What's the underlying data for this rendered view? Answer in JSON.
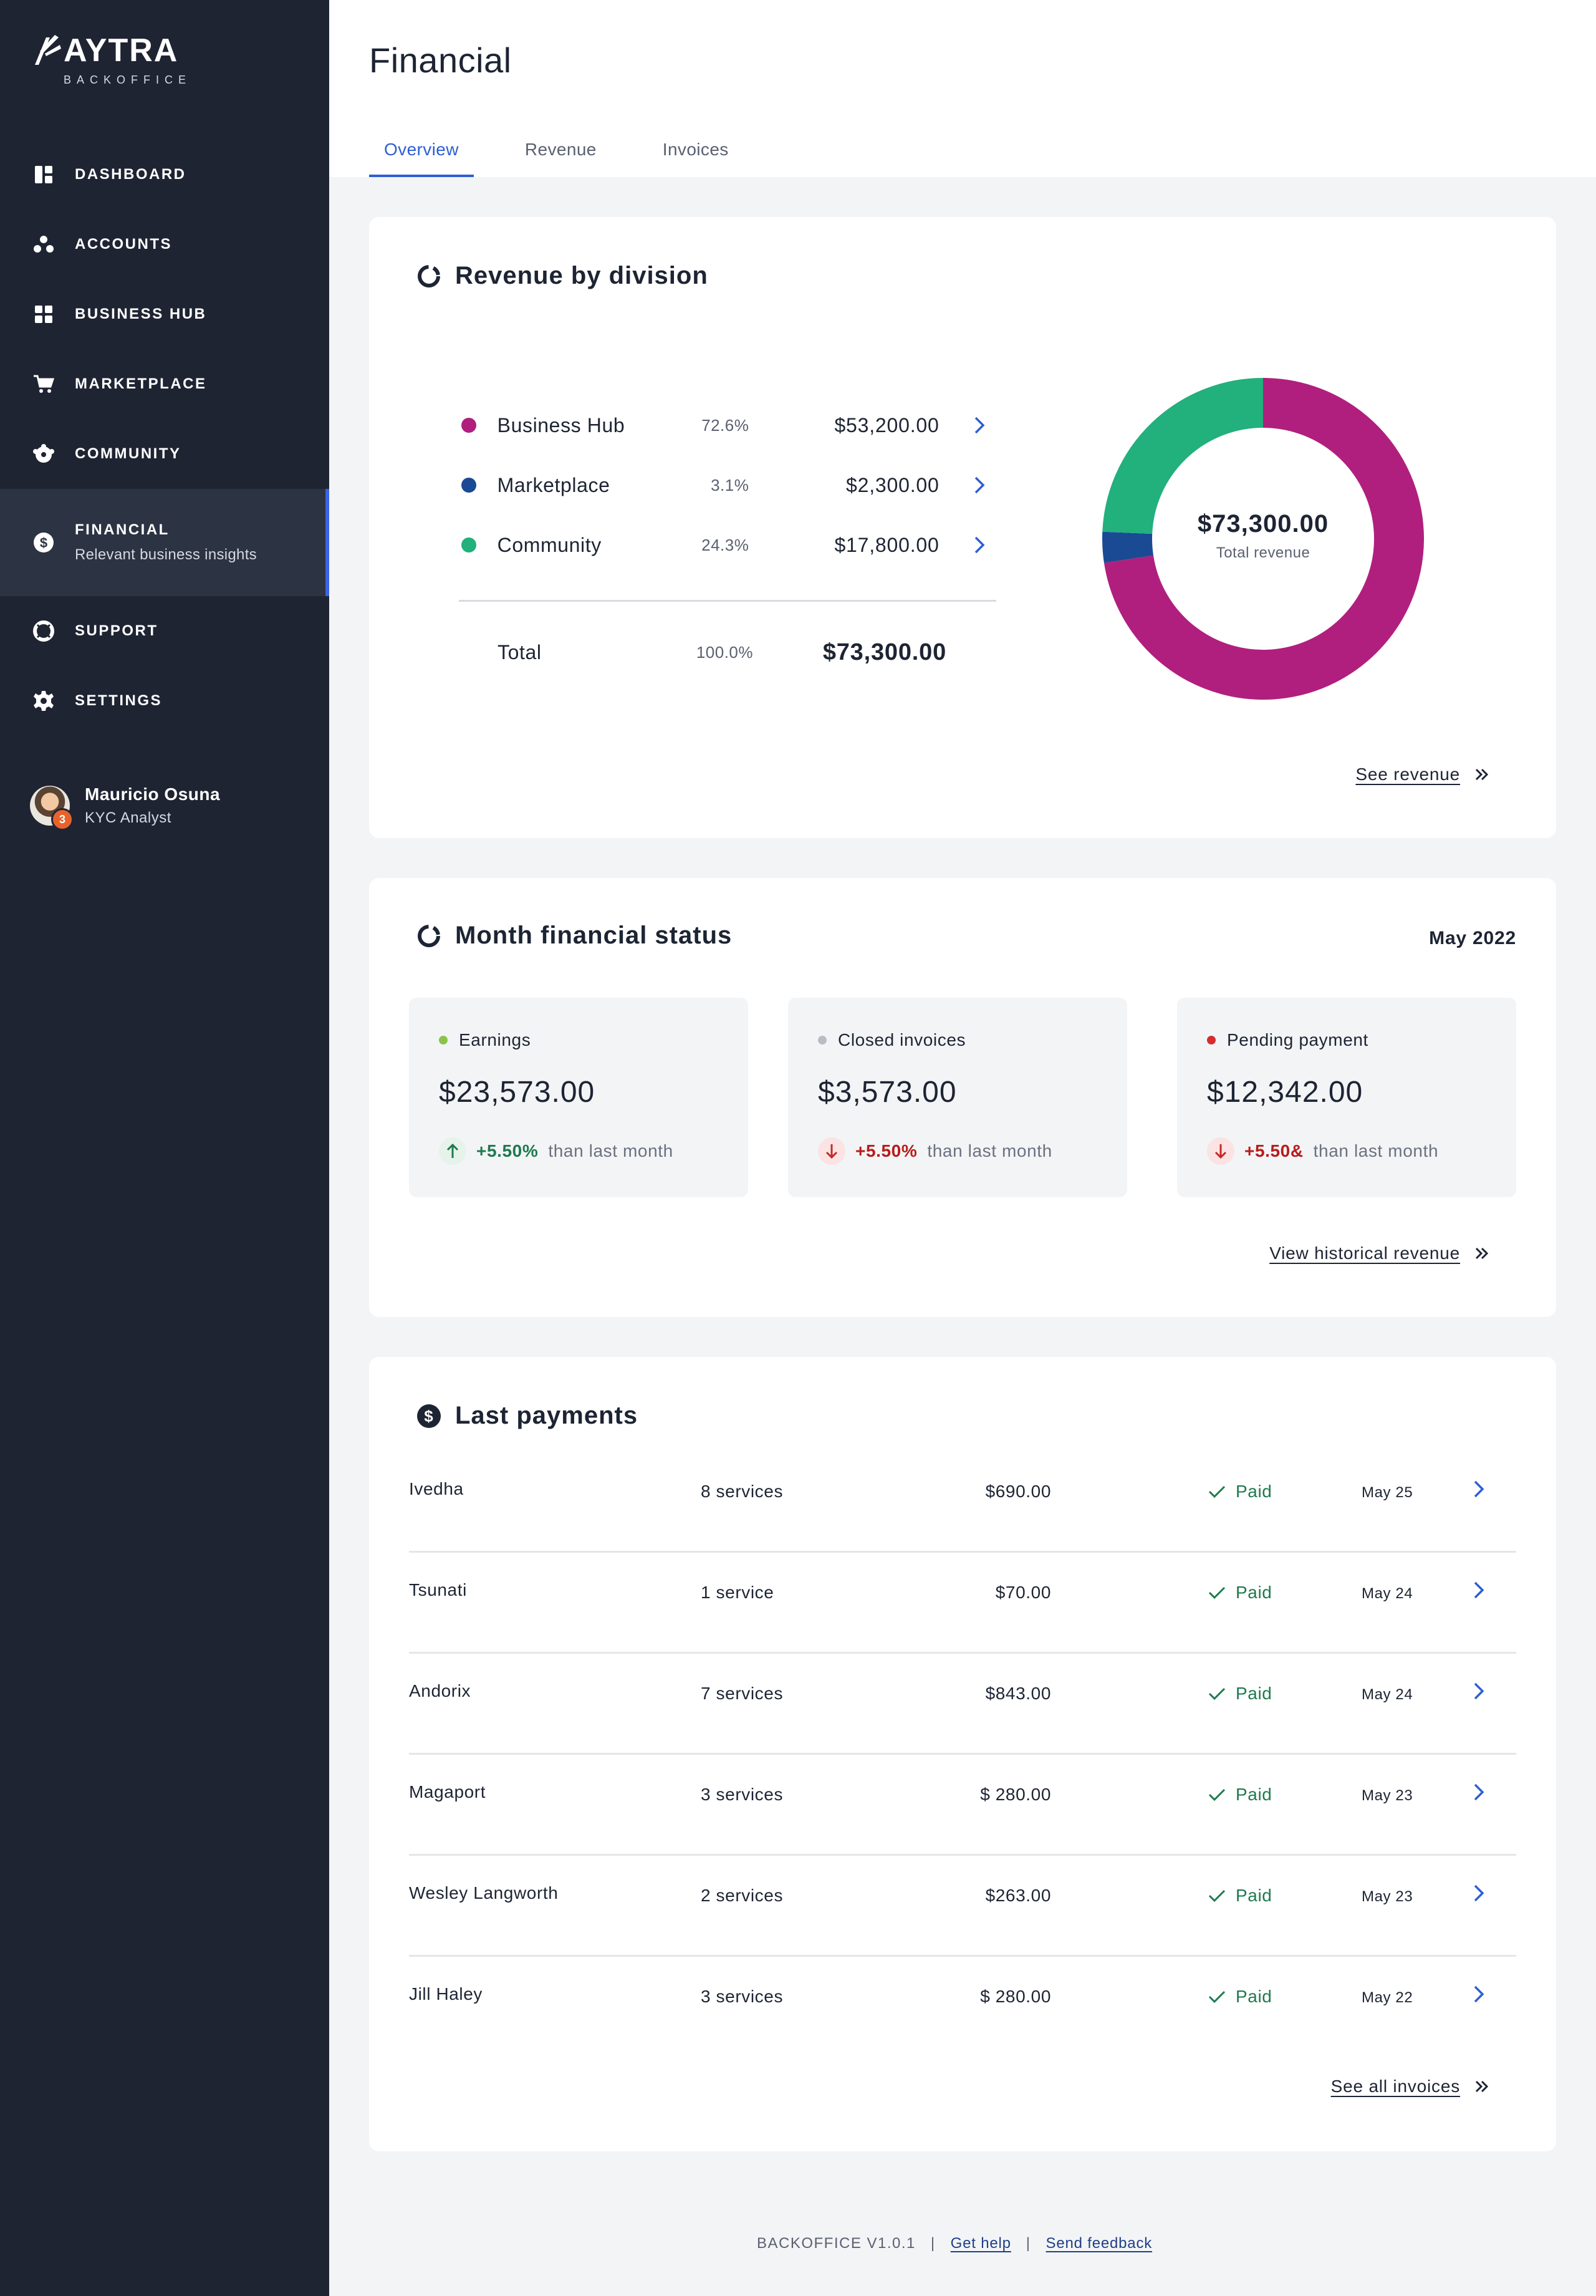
{
  "brand": {
    "name": "AYTRA",
    "subtitle": "BACKOFFICE"
  },
  "sidebar": {
    "items": [
      {
        "label": "DASHBOARD",
        "icon": "dashboard-icon"
      },
      {
        "label": "ACCOUNTS",
        "icon": "accounts-icon"
      },
      {
        "label": "BUSINESS HUB",
        "icon": "grid-icon"
      },
      {
        "label": "MARKETPLACE",
        "icon": "cart-icon"
      },
      {
        "label": "COMMUNITY",
        "icon": "community-icon"
      },
      {
        "label": "FINANCIAL",
        "icon": "dollar-icon",
        "sub": "Relevant business insights",
        "active": true
      },
      {
        "label": "SUPPORT",
        "icon": "lifebuoy-icon"
      },
      {
        "label": "SETTINGS",
        "icon": "gear-icon"
      }
    ],
    "user": {
      "name": "Mauricio Osuna",
      "role": "KYC Analyst",
      "badge": "3"
    }
  },
  "header": {
    "title": "Financial",
    "tabs": [
      {
        "label": "Overview",
        "active": true
      },
      {
        "label": "Revenue"
      },
      {
        "label": "Invoices"
      }
    ]
  },
  "revenue": {
    "title": "Revenue by division",
    "rows": [
      {
        "name": "Business Hub",
        "pct": "72.6%",
        "amount": "$53,200.00",
        "color": "#b01f7e"
      },
      {
        "name": "Marketplace",
        "pct": "3.1%",
        "amount": "$2,300.00",
        "color": "#1a4a94"
      },
      {
        "name": "Community",
        "pct": "24.3%",
        "amount": "$17,800.00",
        "color": "#22b07d"
      }
    ],
    "total": {
      "name": "Total",
      "pct": "100.0%",
      "amount": "$73,300.00"
    },
    "donut": {
      "amount": "$73,300.00",
      "label": "Total revenue"
    },
    "link": "See revenue"
  },
  "chart_data": {
    "type": "pie",
    "categories": [
      "Business Hub",
      "Marketplace",
      "Community"
    ],
    "values": [
      72.6,
      3.1,
      24.3
    ],
    "amounts": [
      53200,
      2300,
      17800
    ],
    "colors": [
      "#b01f7e",
      "#1a4a94",
      "#22b07d"
    ],
    "title": "Revenue by division"
  },
  "status": {
    "title": "Month financial status",
    "month": "May 2022",
    "cards": [
      {
        "label": "Earnings",
        "value": "$23,573.00",
        "change": "+5.50%",
        "compare": "than last month",
        "dot": "#8bc34a",
        "direction": "up"
      },
      {
        "label": "Closed invoices",
        "value": "$3,573.00",
        "change": "+5.50%",
        "compare": "than last month",
        "dot": "#b8bcc4",
        "direction": "down"
      },
      {
        "label": "Pending payment",
        "value": "$12,342.00",
        "change": "+5.50&",
        "compare": "than last month",
        "dot": "#d32f2f",
        "direction": "down"
      }
    ],
    "link": "View historical revenue"
  },
  "payments": {
    "title": "Last payments",
    "rows": [
      {
        "name": "Ivedha",
        "services": "8 services",
        "amount": "$690.00",
        "status": "Paid",
        "date": "May 25"
      },
      {
        "name": "Tsunati",
        "services": "1 service",
        "amount": "$70.00",
        "status": "Paid",
        "date": "May 24"
      },
      {
        "name": "Andorix",
        "services": "7 services",
        "amount": "$843.00",
        "status": "Paid",
        "date": "May 24"
      },
      {
        "name": "Magaport",
        "services": "3 services",
        "amount": "$ 280.00",
        "status": "Paid",
        "date": "May 23"
      },
      {
        "name": "Wesley Langworth",
        "services": "2 services",
        "amount": "$263.00",
        "status": "Paid",
        "date": "May 23"
      },
      {
        "name": "Jill Haley",
        "services": "3 services",
        "amount": "$ 280.00",
        "status": "Paid",
        "date": "May 22"
      }
    ],
    "link": "See all invoices"
  },
  "footer": {
    "version": "BACKOFFICE V1.0.1",
    "help": "Get help",
    "feedback": "Send feedback"
  }
}
